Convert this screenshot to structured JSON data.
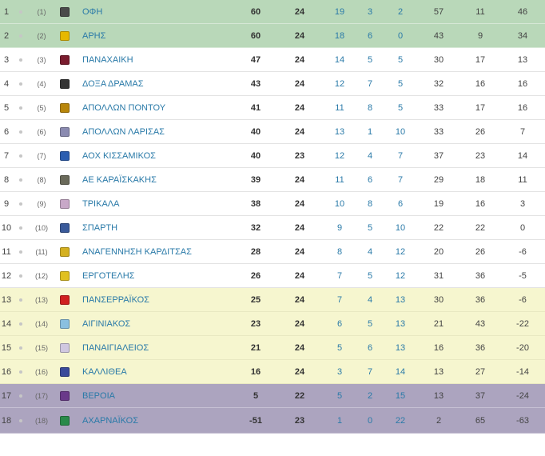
{
  "standings": [
    {
      "pos": "1",
      "prev": "(1)",
      "team": "ΟΦΗ",
      "pts": "60",
      "gp": "24",
      "w": "19",
      "d": "3",
      "l": "2",
      "gf": "57",
      "ga": "11",
      "gd": "46",
      "zone": "z-promo",
      "logo_color": "#4a4a4a"
    },
    {
      "pos": "2",
      "prev": "(2)",
      "team": "ΑΡΗΣ",
      "pts": "60",
      "gp": "24",
      "w": "18",
      "d": "6",
      "l": "0",
      "gf": "43",
      "ga": "9",
      "gd": "34",
      "zone": "z-promo",
      "logo_color": "#e6b800"
    },
    {
      "pos": "3",
      "prev": "(3)",
      "team": "ΠΑΝΑΧΑΙΚΗ",
      "pts": "47",
      "gp": "24",
      "w": "14",
      "d": "5",
      "l": "5",
      "gf": "30",
      "ga": "17",
      "gd": "13",
      "zone": "z-mid",
      "logo_color": "#7a1c2e"
    },
    {
      "pos": "4",
      "prev": "(4)",
      "team": "ΔΟΞΑ ΔΡΑΜΑΣ",
      "pts": "43",
      "gp": "24",
      "w": "12",
      "d": "7",
      "l": "5",
      "gf": "32",
      "ga": "16",
      "gd": "16",
      "zone": "z-mid",
      "logo_color": "#333333"
    },
    {
      "pos": "5",
      "prev": "(5)",
      "team": "ΑΠΟΛΛΩΝ ΠΟΝΤΟΥ",
      "pts": "41",
      "gp": "24",
      "w": "11",
      "d": "8",
      "l": "5",
      "gf": "33",
      "ga": "17",
      "gd": "16",
      "zone": "z-mid",
      "logo_color": "#b8860b"
    },
    {
      "pos": "6",
      "prev": "(6)",
      "team": "ΑΠΟΛΛΩΝ ΛΑΡΙΣΑΣ",
      "pts": "40",
      "gp": "24",
      "w": "13",
      "d": "1",
      "l": "10",
      "gf": "33",
      "ga": "26",
      "gd": "7",
      "zone": "z-mid",
      "logo_color": "#8a8ab0"
    },
    {
      "pos": "7",
      "prev": "(7)",
      "team": "ΑΟΧ ΚΙΣΣΑΜΙΚΟΣ",
      "pts": "40",
      "gp": "23",
      "w": "12",
      "d": "4",
      "l": "7",
      "gf": "37",
      "ga": "23",
      "gd": "14",
      "zone": "z-mid",
      "logo_color": "#2a5db0"
    },
    {
      "pos": "8",
      "prev": "(8)",
      "team": "ΑΕ ΚΑΡΑΪΣΚΑΚΗΣ",
      "pts": "39",
      "gp": "24",
      "w": "11",
      "d": "6",
      "l": "7",
      "gf": "29",
      "ga": "18",
      "gd": "11",
      "zone": "z-mid",
      "logo_color": "#6a6a5a"
    },
    {
      "pos": "9",
      "prev": "(9)",
      "team": "ΤΡΙΚΑΛΑ",
      "pts": "38",
      "gp": "24",
      "w": "10",
      "d": "8",
      "l": "6",
      "gf": "19",
      "ga": "16",
      "gd": "3",
      "zone": "z-mid",
      "logo_color": "#c8a8c8"
    },
    {
      "pos": "10",
      "prev": "(10)",
      "team": "ΣΠΑΡΤΗ",
      "pts": "32",
      "gp": "24",
      "w": "9",
      "d": "5",
      "l": "10",
      "gf": "22",
      "ga": "22",
      "gd": "0",
      "zone": "z-mid",
      "logo_color": "#3a5a9a"
    },
    {
      "pos": "11",
      "prev": "(11)",
      "team": "ΑΝΑΓΕΝΝΗΣΗ ΚΑΡΔΙΤΣΑΣ",
      "pts": "28",
      "gp": "24",
      "w": "8",
      "d": "4",
      "l": "12",
      "gf": "20",
      "ga": "26",
      "gd": "-6",
      "zone": "z-mid",
      "logo_color": "#d4b020"
    },
    {
      "pos": "12",
      "prev": "(12)",
      "team": "ΕΡΓΟΤΕΛΗΣ",
      "pts": "26",
      "gp": "24",
      "w": "7",
      "d": "5",
      "l": "12",
      "gf": "31",
      "ga": "36",
      "gd": "-5",
      "zone": "z-mid",
      "logo_color": "#e0c020"
    },
    {
      "pos": "13",
      "prev": "(13)",
      "team": "ΠΑΝΣΕΡΡΑΪΚΟΣ",
      "pts": "25",
      "gp": "24",
      "w": "7",
      "d": "4",
      "l": "13",
      "gf": "30",
      "ga": "36",
      "gd": "-6",
      "zone": "z-warn",
      "logo_color": "#d02020"
    },
    {
      "pos": "14",
      "prev": "(14)",
      "team": "ΑΙΓΙΝΙΑΚΟΣ",
      "pts": "23",
      "gp": "24",
      "w": "6",
      "d": "5",
      "l": "13",
      "gf": "21",
      "ga": "43",
      "gd": "-22",
      "zone": "z-warn",
      "logo_color": "#8ac0e0"
    },
    {
      "pos": "15",
      "prev": "(15)",
      "team": "ΠΑΝΑΙΓΙΑΛΕΙΟΣ",
      "pts": "21",
      "gp": "24",
      "w": "5",
      "d": "6",
      "l": "13",
      "gf": "16",
      "ga": "36",
      "gd": "-20",
      "zone": "z-warn",
      "logo_color": "#d0c8e0"
    },
    {
      "pos": "16",
      "prev": "(16)",
      "team": "ΚΑΛΛΙΘΕΑ",
      "pts": "16",
      "gp": "24",
      "w": "3",
      "d": "7",
      "l": "14",
      "gf": "13",
      "ga": "27",
      "gd": "-14",
      "zone": "z-warn",
      "logo_color": "#3a4a9a"
    },
    {
      "pos": "17",
      "prev": "(17)",
      "team": "ΒΕΡΟΙΑ",
      "pts": "5",
      "gp": "22",
      "w": "5",
      "d": "2",
      "l": "15",
      "gf": "13",
      "ga": "37",
      "gd": "-24",
      "zone": "z-releg",
      "logo_color": "#6a3a8a"
    },
    {
      "pos": "18",
      "prev": "(18)",
      "team": "ΑΧΑΡΝΑΪΚΟΣ",
      "pts": "-51",
      "gp": "23",
      "w": "1",
      "d": "0",
      "l": "22",
      "gf": "2",
      "ga": "65",
      "gd": "-63",
      "zone": "z-releg",
      "logo_color": "#2a8a4a"
    }
  ]
}
